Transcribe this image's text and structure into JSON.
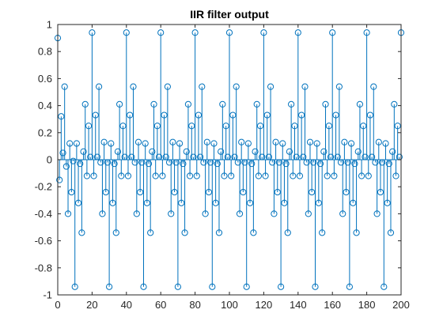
{
  "chart_data": {
    "type": "stem",
    "title": "IIR filter output",
    "xlabel": "",
    "ylabel": "",
    "xlim": [
      0,
      200
    ],
    "ylim": [
      -1,
      1
    ],
    "x_ticks": [
      0,
      20,
      40,
      60,
      80,
      100,
      120,
      140,
      160,
      180,
      200
    ],
    "y_ticks": [
      -1,
      -0.8,
      -0.6,
      -0.4,
      -0.2,
      0,
      0.2,
      0.4,
      0.6,
      0.8,
      1
    ],
    "y_tick_labels": [
      "-1",
      "-0.8",
      "-0.6",
      "-0.4",
      "-0.2",
      "0",
      "0.2",
      "0.4",
      "0.6",
      "0.8",
      "1"
    ],
    "grid": false,
    "marker": "circle",
    "color": "#0072bd",
    "period": 20,
    "series": [
      {
        "x": [
          0,
          1,
          2,
          3,
          4,
          5,
          6,
          7,
          8,
          9,
          10,
          11,
          12,
          13,
          14,
          15,
          16,
          17,
          18,
          19
        ],
        "values": [
          0.9,
          -0.15,
          0.32,
          0.05,
          0.54,
          -0.05,
          -0.4,
          0.12,
          -0.24,
          -0.01,
          -0.94,
          0.12,
          -0.32,
          -0.03,
          -0.54,
          0.06,
          0.41,
          -0.12,
          0.25,
          0.02
        ]
      }
    ],
    "x_full": [
      0,
      1,
      2,
      3,
      4,
      5,
      6,
      7,
      8,
      9,
      10,
      11,
      12,
      13,
      14,
      15,
      16,
      17,
      18,
      19,
      20,
      21,
      22,
      23,
      24,
      25,
      26,
      27,
      28,
      29,
      30,
      31,
      32,
      33,
      34,
      35,
      36,
      37,
      38,
      39,
      40,
      41,
      42,
      43,
      44,
      45,
      46,
      47,
      48,
      49,
      50,
      51,
      52,
      53,
      54,
      55,
      56,
      57,
      58,
      59,
      60,
      61,
      62,
      63,
      64,
      65,
      66,
      67,
      68,
      69,
      70,
      71,
      72,
      73,
      74,
      75,
      76,
      77,
      78,
      79,
      80,
      81,
      82,
      83,
      84,
      85,
      86,
      87,
      88,
      89,
      90,
      91,
      92,
      93,
      94,
      95,
      96,
      97,
      98,
      99,
      100,
      101,
      102,
      103,
      104,
      105,
      106,
      107,
      108,
      109,
      110,
      111,
      112,
      113,
      114,
      115,
      116,
      117,
      118,
      119,
      120,
      121,
      122,
      123,
      124,
      125,
      126,
      127,
      128,
      129,
      130,
      131,
      132,
      133,
      134,
      135,
      136,
      137,
      138,
      139,
      140,
      141,
      142,
      143,
      144,
      145,
      146,
      147,
      148,
      149,
      150,
      151,
      152,
      153,
      154,
      155,
      156,
      157,
      158,
      159,
      160,
      161,
      162,
      163,
      164,
      165,
      166,
      167,
      168,
      169,
      170,
      171,
      172,
      173,
      174,
      175,
      176,
      177,
      178,
      179,
      180,
      181,
      182,
      183,
      184,
      185,
      186,
      187,
      188,
      189,
      190,
      191,
      192,
      193,
      194,
      195,
      196,
      197,
      198,
      199,
      200
    ],
    "y_full": [
      0.9,
      -0.15,
      0.32,
      0.05,
      0.54,
      -0.05,
      -0.4,
      0.12,
      -0.24,
      -0.01,
      -0.94,
      0.12,
      -0.32,
      -0.03,
      -0.54,
      0.06,
      0.41,
      -0.12,
      0.25,
      0.02,
      0.94,
      -0.12,
      0.33,
      0.02,
      0.54,
      -0.02,
      -0.4,
      0.13,
      -0.24,
      -0.02,
      -0.94,
      0.12,
      -0.32,
      -0.03,
      -0.54,
      0.06,
      0.41,
      -0.12,
      0.25,
      0.02,
      0.94,
      -0.12,
      0.33,
      0.02,
      0.54,
      -0.02,
      -0.4,
      0.13,
      -0.24,
      -0.02,
      -0.94,
      0.12,
      -0.32,
      -0.03,
      -0.54,
      0.06,
      0.41,
      -0.12,
      0.25,
      0.02,
      0.94,
      -0.12,
      0.33,
      0.02,
      0.54,
      -0.02,
      -0.4,
      0.13,
      -0.24,
      -0.02,
      -0.94,
      0.12,
      -0.32,
      -0.03,
      -0.54,
      0.06,
      0.41,
      -0.12,
      0.25,
      0.02,
      0.94,
      -0.12,
      0.33,
      0.02,
      0.54,
      -0.02,
      -0.4,
      0.13,
      -0.24,
      -0.02,
      -0.94,
      0.12,
      -0.32,
      -0.03,
      -0.54,
      0.06,
      0.41,
      -0.12,
      0.25,
      0.02,
      0.94,
      -0.12,
      0.33,
      0.02,
      0.54,
      -0.02,
      -0.4,
      0.13,
      -0.24,
      -0.02,
      -0.94,
      0.12,
      -0.32,
      -0.03,
      -0.54,
      0.06,
      0.41,
      -0.12,
      0.25,
      0.02,
      0.94,
      -0.12,
      0.33,
      0.02,
      0.54,
      -0.02,
      -0.4,
      0.13,
      -0.24,
      -0.02,
      -0.94,
      0.12,
      -0.32,
      -0.03,
      -0.54,
      0.06,
      0.41,
      -0.12,
      0.25,
      0.02,
      0.94,
      -0.12,
      0.33,
      0.02,
      0.54,
      -0.02,
      -0.4,
      0.13,
      -0.24,
      -0.02,
      -0.94,
      0.12,
      -0.32,
      -0.03,
      -0.54,
      0.06,
      0.41,
      -0.12,
      0.25,
      0.02,
      0.94,
      -0.12,
      0.33,
      0.02,
      0.54,
      -0.02,
      -0.4,
      0.13,
      -0.24,
      -0.02,
      -0.94,
      0.12,
      -0.32,
      -0.03,
      -0.54,
      0.06,
      0.41,
      -0.12,
      0.25,
      0.02,
      0.94,
      -0.12,
      0.33,
      0.02,
      0.54,
      -0.02,
      -0.4,
      0.13,
      -0.24,
      -0.02,
      -0.94,
      0.12,
      -0.32,
      -0.03,
      -0.54,
      0.06,
      0.41,
      -0.12,
      0.25,
      0.02,
      0.94
    ]
  }
}
